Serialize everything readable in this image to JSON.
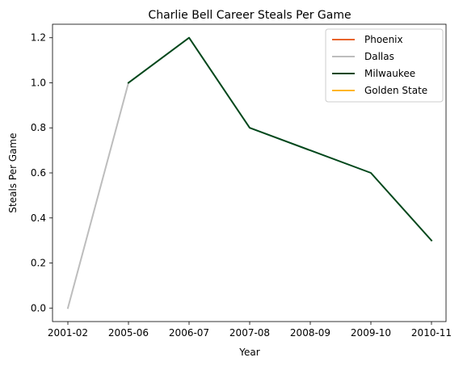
{
  "chart_data": {
    "type": "line",
    "title": "Charlie Bell  Career Steals Per Game",
    "xlabel": "Year",
    "ylabel": "Steals Per Game",
    "categories": [
      "2001-02",
      "2005-06",
      "2006-07",
      "2007-08",
      "2008-09",
      "2009-10",
      "2010-11"
    ],
    "yticks": [
      "0.0",
      "0.2",
      "0.4",
      "0.6",
      "0.8",
      "1.0",
      "1.2"
    ],
    "ylim": [
      -0.06,
      1.26
    ],
    "grid": false,
    "legend_position": "top-right",
    "series": [
      {
        "name": "Phoenix",
        "color": "#e8632a",
        "points": []
      },
      {
        "name": "Dallas",
        "color": "#bdbdbd",
        "points": [
          [
            "2001-02",
            0.0
          ],
          [
            "2005-06",
            1.0
          ]
        ]
      },
      {
        "name": "Milwaukee",
        "color": "#00471b",
        "points": [
          [
            "2005-06",
            1.0
          ],
          [
            "2006-07",
            1.2
          ],
          [
            "2007-08",
            0.8
          ],
          [
            "2008-09",
            0.7
          ],
          [
            "2009-10",
            0.6
          ],
          [
            "2010-11",
            0.3
          ]
        ]
      },
      {
        "name": "Golden State",
        "color": "#ffb626",
        "points": []
      }
    ]
  }
}
